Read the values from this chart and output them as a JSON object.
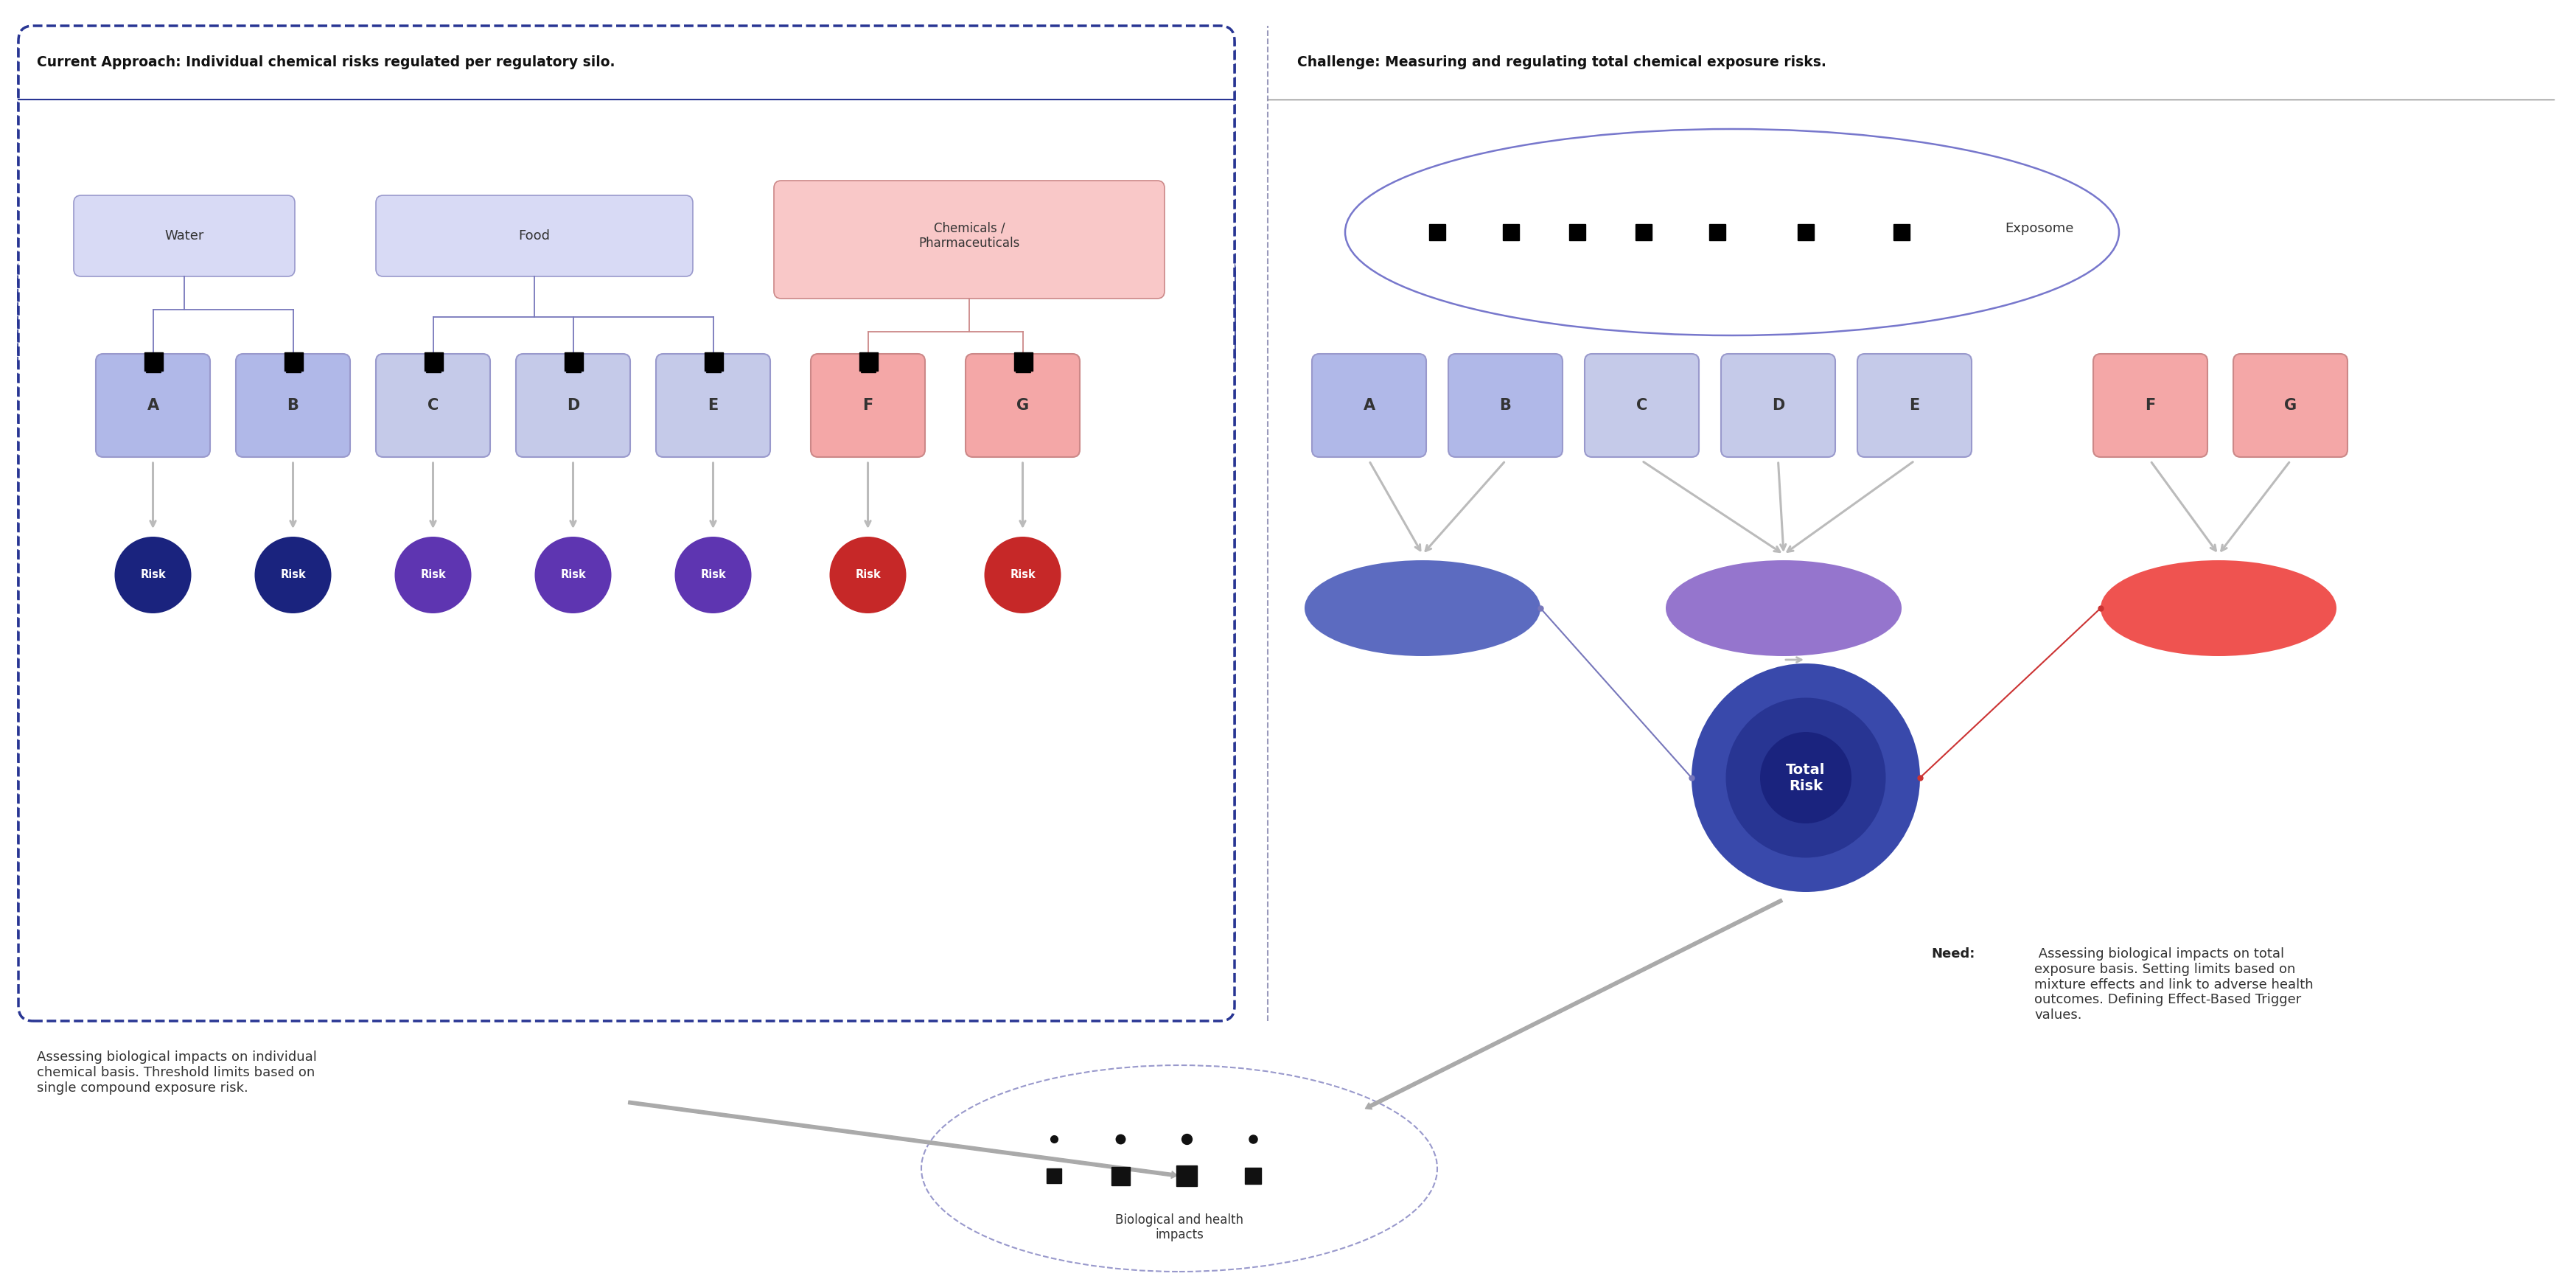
{
  "left_title": "Current Approach: Individual chemical risks regulated per regulatory silo.",
  "right_title": "Challenge: Measuring and regulating total chemical exposure risks.",
  "categories": [
    "A",
    "B",
    "C",
    "D",
    "E",
    "F",
    "G"
  ],
  "left_box_colors": [
    "#b0b8e8",
    "#b0b8e8",
    "#c5cae9",
    "#c5cae9",
    "#c5cae9",
    "#f4a7a7",
    "#f4a7a7"
  ],
  "right_box_colors": [
    "#b0b8e8",
    "#b0b8e8",
    "#c5cae9",
    "#c5cae9",
    "#c5cae9",
    "#f4a7a7",
    "#f4a7a7"
  ],
  "risk_colors_left": [
    "#1a237e",
    "#1a237e",
    "#5e35b1",
    "#5e35b1",
    "#5e35b1",
    "#c62828",
    "#c62828"
  ],
  "water_fc": "#d8daf5",
  "water_ec": "#9999cc",
  "food_fc": "#d8daf5",
  "food_ec": "#9999cc",
  "chem_fc": "#f9c8c8",
  "chem_ec": "#cc8888",
  "oval_blue_fc": "#5c6bc0",
  "oval_blue_ec": "none",
  "oval_purple_fc": "#9575cd",
  "oval_purple_ec": "none",
  "oval_red_fc": "#ef5350",
  "oval_red_ec": "none",
  "total_risk_fc": "#283593",
  "panel_border_color": "#283593",
  "divider_color": "#9999bb",
  "exposome_ec": "#7777cc",
  "bio_ec": "#9999cc",
  "arrow_color": "#aaaaaa",
  "thin_line_blue": "#7777bb",
  "thin_line_red": "#cc3333",
  "bg_color": "#ffffff",
  "bottom_left_text": "Assessing biological impacts on individual\nchemical basis. Threshold limits based on\nsingle compound exposure risk.",
  "bottom_right_need": "Need:",
  "bottom_right_rest": " Assessing biological impacts on total\nexposure basis. Setting limits based on\nmixture effects and link to adverse health\noutcomes. Defining Effect-Based Trigger\nvalues.",
  "exposome_label": "Exposome",
  "total_risk_label": "Total\nRisk",
  "bio_health_label": "Biological and health\nimpacts"
}
